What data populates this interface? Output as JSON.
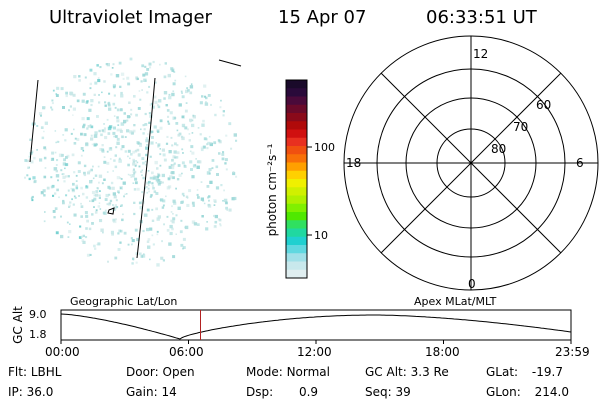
{
  "header": {
    "instrument": "Ultraviolet Imager",
    "date": "15 Apr 07",
    "time": "06:33:51 UT"
  },
  "colorbar": {
    "unit_label": "photon cm⁻²s⁻¹",
    "ticks": [
      "100",
      "10"
    ]
  },
  "polar_plot": {
    "mlt_labels": [
      "12",
      "18",
      "6",
      "0"
    ],
    "lat_labels": [
      "60",
      "70",
      "80"
    ]
  },
  "timeline": {
    "left_title": "Geographic Lat/Lon",
    "right_title": "Apex MLat/MLT",
    "y_axis_label": "GC Alt",
    "y_ticks": [
      "9.0",
      "1.8"
    ],
    "x_ticks": [
      "00:00",
      "06:00",
      "12:00",
      "18:00",
      "23:59"
    ]
  },
  "status": {
    "row1": [
      {
        "key": "Flt:",
        "value": "LBHL"
      },
      {
        "key": "Door:",
        "value": "Open"
      },
      {
        "key": "Mode:",
        "value": "Normal"
      },
      {
        "key": "GC Alt:",
        "value": "3.3 Re"
      },
      {
        "key": "GLat:",
        "value": "-19.7"
      }
    ],
    "row2": [
      {
        "key": "IP:",
        "value": "36.0"
      },
      {
        "key": "Gain:",
        "value": "14"
      },
      {
        "key": "Dsp:",
        "value": "0.9"
      },
      {
        "key": "Seq:",
        "value": "39"
      },
      {
        "key": "GLon:",
        "value": "214.0"
      }
    ]
  },
  "colors": {
    "aurora_dots": [
      "#c8e6e6",
      "#a8dcdc",
      "#8fd3d3",
      "#5fc9c9",
      "#9ad4b4"
    ],
    "time_marker": "#b22222"
  }
}
